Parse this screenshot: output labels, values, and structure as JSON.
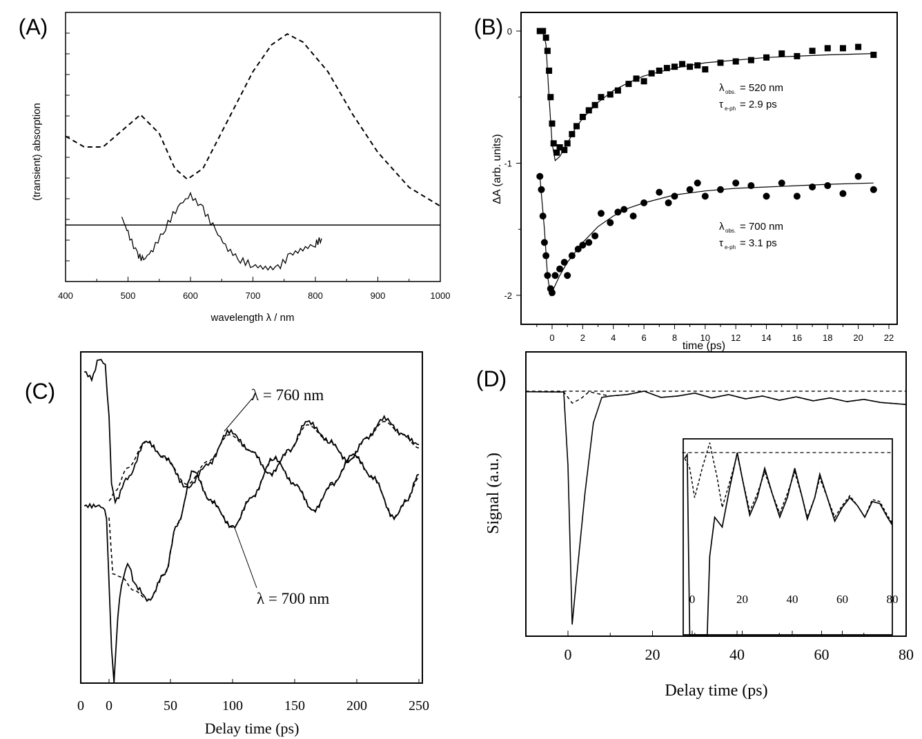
{
  "chart_data": [
    {
      "panel_label": "(A)",
      "type": "line",
      "xlabel": "wavelength λ / nm",
      "ylabel": "(transient) absorption",
      "xlim": [
        400,
        1000
      ],
      "ylim": [
        0,
        1
      ],
      "xticks": [
        "400",
        "500",
        "600",
        "700",
        "800",
        "900",
        "1000"
      ],
      "y_tick_labels_shown": false,
      "grid": false,
      "series": [
        {
          "style": "dashed",
          "x": [
            400,
            430,
            460,
            490,
            520,
            550,
            575,
            595,
            620,
            660,
            700,
            730,
            755,
            780,
            820,
            860,
            900,
            950,
            1000
          ],
          "y": [
            0.54,
            0.5,
            0.5,
            0.56,
            0.62,
            0.55,
            0.42,
            0.38,
            0.42,
            0.6,
            0.78,
            0.88,
            0.92,
            0.89,
            0.78,
            0.62,
            0.48,
            0.35,
            0.28
          ]
        },
        {
          "style": "solid",
          "x": [
            490,
            500,
            515,
            525,
            540,
            560,
            580,
            600,
            620,
            640,
            660,
            680,
            700,
            720,
            740,
            760,
            780,
            800,
            810
          ],
          "y": [
            0.24,
            0.18,
            0.1,
            0.08,
            0.12,
            0.2,
            0.28,
            0.32,
            0.27,
            0.19,
            0.12,
            0.08,
            0.06,
            0.05,
            0.05,
            0.1,
            0.12,
            0.14,
            0.16
          ]
        },
        {
          "style": "baseline",
          "x": [
            400,
            1000
          ],
          "y": [
            0.21,
            0.21
          ]
        }
      ]
    },
    {
      "panel_label": "(B)",
      "type": "scatter",
      "xlabel": "time (ps)",
      "ylabel": "ΔA (arb. units)",
      "xlim": [
        -2,
        22.5
      ],
      "ylim": [
        -2.2,
        0.1
      ],
      "xticks": [
        "0",
        "2",
        "4",
        "6",
        "8",
        "10",
        "12",
        "14",
        "16",
        "18",
        "20",
        "22"
      ],
      "yticks": [
        "0",
        "-1",
        "-2"
      ],
      "grid": false,
      "annotations": [
        {
          "lambda": "λ",
          "lambda_sub": "obs.",
          "lambda_val": "= 520 nm",
          "tau": "τ",
          "tau_sub": "e-ph",
          "tau_val": "= 2.9 ps"
        },
        {
          "lambda": "λ",
          "lambda_sub": "obs.",
          "lambda_val": "= 700 nm",
          "tau": "τ",
          "tau_sub": "e-ph",
          "tau_val": "= 3.1 ps"
        }
      ],
      "series": [
        {
          "marker": "square",
          "observed_wavelength_nm": 520,
          "x": [
            -0.8,
            -0.6,
            -0.4,
            -0.3,
            -0.2,
            -0.1,
            0,
            0.1,
            0.3,
            0.5,
            0.8,
            1,
            1.3,
            1.6,
            2,
            2.4,
            2.8,
            3.2,
            3.8,
            4.3,
            5,
            5.5,
            6,
            6.5,
            7,
            7.5,
            8,
            8.5,
            9,
            9.5,
            10,
            11,
            12,
            13,
            14,
            15,
            16,
            17,
            18,
            19,
            20,
            21
          ],
          "y": [
            0,
            0,
            -0.05,
            -0.15,
            -0.3,
            -0.5,
            -0.7,
            -0.85,
            -0.92,
            -0.88,
            -0.9,
            -0.85,
            -0.78,
            -0.72,
            -0.65,
            -0.6,
            -0.56,
            -0.5,
            -0.48,
            -0.45,
            -0.4,
            -0.36,
            -0.38,
            -0.32,
            -0.3,
            -0.28,
            -0.27,
            -0.25,
            -0.27,
            -0.26,
            -0.29,
            -0.24,
            -0.23,
            -0.22,
            -0.2,
            -0.17,
            -0.19,
            -0.15,
            -0.13,
            -0.13,
            -0.12,
            -0.18
          ]
        },
        {
          "marker": "circle",
          "observed_wavelength_nm": 700,
          "x": [
            -0.8,
            -0.7,
            -0.6,
            -0.5,
            -0.4,
            -0.3,
            -0.1,
            0,
            0.2,
            0.5,
            0.8,
            1,
            1.3,
            1.7,
            2,
            2.4,
            2.8,
            3.2,
            3.8,
            4.3,
            4.7,
            5.3,
            6,
            7,
            7.6,
            8,
            9,
            9.5,
            10,
            11,
            12,
            13,
            14,
            15,
            16,
            17,
            18,
            19,
            20,
            21
          ],
          "y": [
            -1.1,
            -1.2,
            -1.4,
            -1.6,
            -1.7,
            -1.85,
            -1.95,
            -1.98,
            -1.85,
            -1.8,
            -1.75,
            -1.85,
            -1.7,
            -1.65,
            -1.62,
            -1.6,
            -1.55,
            -1.38,
            -1.45,
            -1.37,
            -1.35,
            -1.4,
            -1.3,
            -1.22,
            -1.3,
            -1.25,
            -1.2,
            -1.15,
            -1.25,
            -1.2,
            -1.15,
            -1.17,
            -1.25,
            -1.15,
            -1.25,
            -1.18,
            -1.17,
            -1.23,
            -1.1,
            -1.2
          ]
        },
        {
          "style": "fit",
          "x": [
            -0.6,
            -0.4,
            -0.2,
            0,
            0.2,
            0.5,
            1,
            1.5,
            2,
            3,
            4,
            5,
            6,
            8,
            10,
            12,
            14,
            16,
            18,
            21
          ],
          "y": [
            0,
            -0.1,
            -0.5,
            -0.85,
            -0.98,
            -0.95,
            -0.85,
            -0.74,
            -0.66,
            -0.54,
            -0.45,
            -0.39,
            -0.34,
            -0.28,
            -0.24,
            -0.22,
            -0.2,
            -0.19,
            -0.18,
            -0.17
          ]
        },
        {
          "style": "fit",
          "x": [
            -0.8,
            -0.5,
            -0.3,
            -0.1,
            0.1,
            0.5,
            1,
            2,
            3,
            4,
            5,
            6,
            8,
            10,
            12,
            14,
            16,
            18,
            21
          ],
          "y": [
            -1.1,
            -1.5,
            -1.85,
            -2.0,
            -1.95,
            -1.85,
            -1.75,
            -1.6,
            -1.48,
            -1.4,
            -1.34,
            -1.3,
            -1.24,
            -1.21,
            -1.19,
            -1.18,
            -1.17,
            -1.16,
            -1.15
          ]
        }
      ]
    },
    {
      "panel_label": "(C)",
      "type": "line",
      "xlabel": "Delay time (ps)",
      "ylabel": "",
      "xlim": [
        -23,
        253
      ],
      "ylim": [
        0,
        1
      ],
      "xticks": [
        "0",
        "0",
        "50",
        "100",
        "150",
        "200",
        "250"
      ],
      "grid": false,
      "annotations": [
        "λ = 760 nm",
        "λ = 700 nm"
      ],
      "series": [
        {
          "style": "solid",
          "label": "λ = 760 nm",
          "x": [
            -20,
            -14,
            -8,
            -3,
            0,
            2,
            5,
            15,
            30,
            45,
            63,
            80,
            97,
            115,
            130,
            145,
            160,
            178,
            193,
            208,
            222,
            237,
            250
          ],
          "y": [
            0.94,
            0.92,
            0.98,
            0.96,
            0.8,
            0.6,
            0.55,
            0.62,
            0.73,
            0.68,
            0.59,
            0.66,
            0.76,
            0.7,
            0.63,
            0.7,
            0.79,
            0.73,
            0.67,
            0.74,
            0.8,
            0.75,
            0.72
          ]
        },
        {
          "style": "dashed",
          "x": [
            0,
            5,
            15,
            30,
            45,
            63,
            80,
            97,
            115,
            130,
            145,
            160,
            178,
            193,
            208,
            222,
            237,
            250
          ],
          "y": [
            0.55,
            0.58,
            0.65,
            0.73,
            0.68,
            0.6,
            0.67,
            0.75,
            0.7,
            0.63,
            0.7,
            0.78,
            0.73,
            0.67,
            0.74,
            0.79,
            0.75,
            0.71
          ]
        },
        {
          "style": "solid",
          "label": "λ = 700 nm",
          "x": [
            -20,
            -5,
            -2,
            0,
            2,
            4,
            7,
            10,
            15,
            22,
            32,
            45,
            55,
            68,
            82,
            100,
            115,
            133,
            150,
            165,
            180,
            197,
            213,
            230,
            240,
            250
          ],
          "y": [
            0.535,
            0.535,
            0.5,
            0.3,
            0.1,
            0.0,
            0.2,
            0.3,
            0.36,
            0.29,
            0.25,
            0.33,
            0.48,
            0.64,
            0.55,
            0.47,
            0.56,
            0.68,
            0.6,
            0.52,
            0.6,
            0.69,
            0.62,
            0.5,
            0.55,
            0.63
          ]
        },
        {
          "style": "dashed",
          "x": [
            0,
            3,
            10,
            20,
            32,
            45,
            55,
            68,
            82,
            100,
            115,
            133,
            150,
            165,
            180,
            197,
            213,
            230,
            240,
            250
          ],
          "y": [
            0.5,
            0.33,
            0.32,
            0.28,
            0.25,
            0.33,
            0.48,
            0.64,
            0.55,
            0.47,
            0.56,
            0.68,
            0.6,
            0.52,
            0.6,
            0.69,
            0.62,
            0.5,
            0.55,
            0.62
          ]
        }
      ]
    },
    {
      "panel_label": "(D)",
      "type": "line",
      "xlabel": "Delay time (ps)",
      "ylabel": "Signal (a.u.)",
      "xlim": [
        -10,
        80
      ],
      "ylim": [
        0,
        1
      ],
      "xticks": [
        "0",
        "20",
        "40",
        "60",
        "80"
      ],
      "grid": false,
      "series": [
        {
          "style": "reference",
          "x": [
            -10,
            80
          ],
          "y": [
            0.862,
            0.862
          ]
        },
        {
          "style": "solid",
          "x": [
            -10,
            -1,
            0,
            1,
            2,
            4,
            6,
            8,
            10,
            14,
            18,
            22,
            26,
            30,
            34,
            38,
            42,
            46,
            50,
            54,
            58,
            62,
            66,
            70,
            74,
            80
          ],
          "y": [
            0.86,
            0.859,
            0.6,
            0.041,
            0.2,
            0.5,
            0.75,
            0.84,
            0.845,
            0.85,
            0.862,
            0.84,
            0.845,
            0.855,
            0.838,
            0.85,
            0.835,
            0.845,
            0.83,
            0.842,
            0.828,
            0.838,
            0.825,
            0.833,
            0.822,
            0.815
          ]
        },
        {
          "style": "dashed",
          "x": [
            -10,
            -1,
            0,
            1,
            3,
            5,
            8,
            10,
            14,
            18,
            22,
            26,
            30,
            34,
            38,
            42,
            46,
            50,
            54,
            58,
            62,
            66,
            70,
            74,
            80
          ],
          "y": [
            0.86,
            0.859,
            0.84,
            0.82,
            0.835,
            0.86,
            0.85,
            0.845,
            0.85,
            0.862,
            0.84,
            0.845,
            0.855,
            0.838,
            0.85,
            0.835,
            0.845,
            0.83,
            0.842,
            0.828,
            0.838,
            0.825,
            0.833,
            0.822,
            0.815
          ]
        }
      ],
      "inset": {
        "xlim": [
          -4,
          80
        ],
        "ylim": [
          0,
          1
        ],
        "xticks": [
          "0",
          "20",
          "40",
          "60",
          "80"
        ],
        "series": [
          {
            "style": "reference",
            "x": [
              -4,
              80
            ],
            "y": [
              0.93,
              0.93
            ]
          },
          {
            "style": "solid",
            "x": [
              -3,
              -2,
              -1,
              6,
              7,
              9,
              12,
              15,
              18,
              20,
              23,
              26,
              29,
              32,
              35,
              38,
              41,
              44,
              46,
              49,
              51,
              54,
              57,
              60,
              63,
              66,
              69,
              72,
              75,
              78,
              80
            ],
            "y": [
              0.9,
              0.92,
              0.0,
              0.0,
              0.4,
              0.6,
              0.55,
              0.75,
              0.93,
              0.8,
              0.61,
              0.7,
              0.85,
              0.72,
              0.6,
              0.7,
              0.85,
              0.7,
              0.59,
              0.7,
              0.82,
              0.7,
              0.58,
              0.65,
              0.7,
              0.66,
              0.6,
              0.68,
              0.67,
              0.6,
              0.56
            ]
          },
          {
            "style": "dashed",
            "x": [
              -3,
              -1,
              1,
              4,
              7,
              10,
              12,
              15,
              18,
              20,
              23,
              26,
              29,
              32,
              35,
              38,
              41,
              44,
              46,
              49,
              51,
              54,
              57,
              60,
              63,
              66,
              69,
              72,
              75,
              78,
              80
            ],
            "y": [
              0.9,
              0.85,
              0.7,
              0.85,
              0.98,
              0.8,
              0.65,
              0.78,
              0.92,
              0.8,
              0.63,
              0.72,
              0.83,
              0.72,
              0.62,
              0.72,
              0.83,
              0.7,
              0.6,
              0.7,
              0.8,
              0.7,
              0.6,
              0.66,
              0.71,
              0.66,
              0.6,
              0.69,
              0.68,
              0.61,
              0.57
            ]
          }
        ]
      }
    }
  ]
}
